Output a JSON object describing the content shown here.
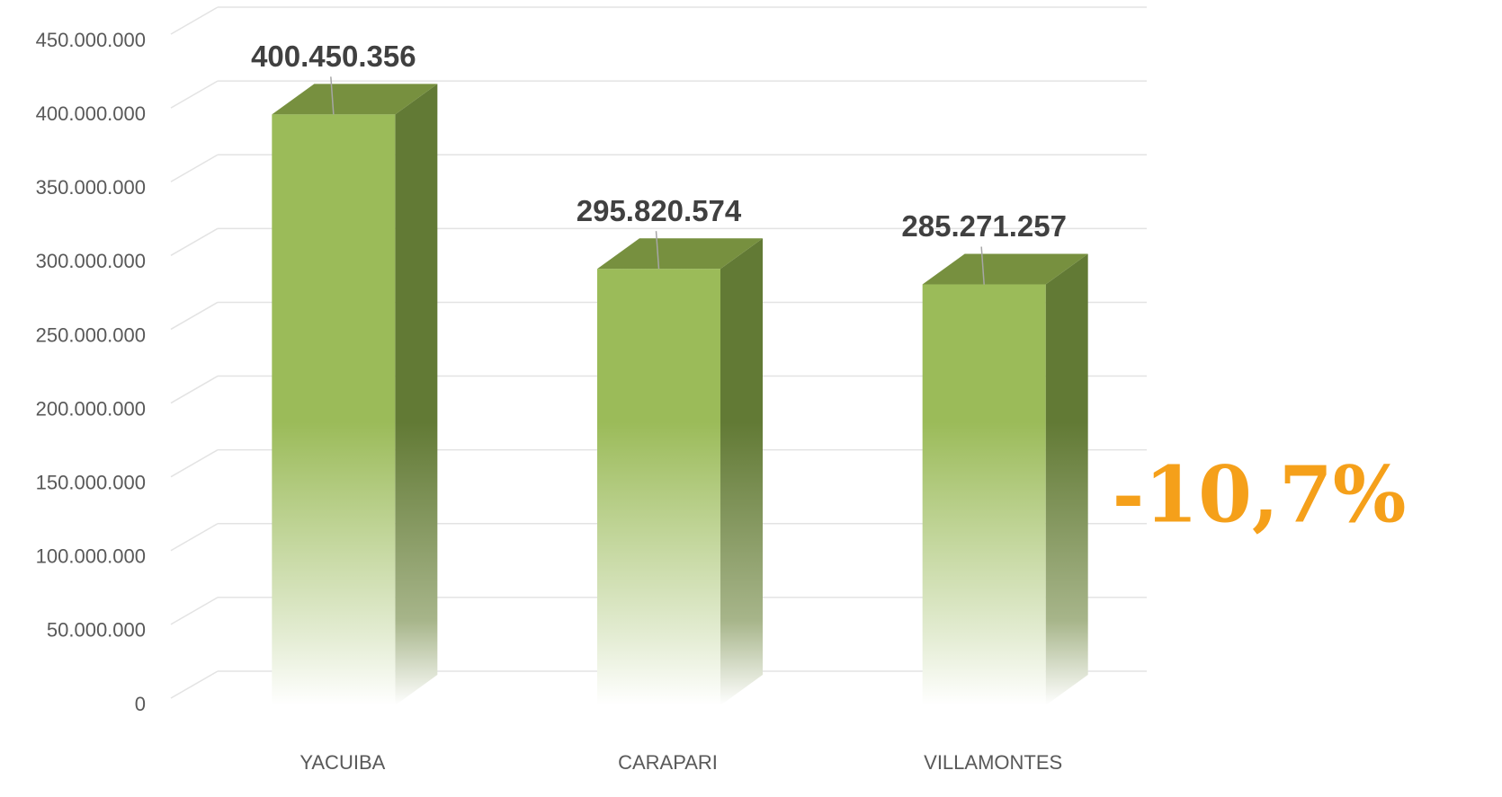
{
  "chart_data": {
    "type": "bar3d",
    "categories": [
      "YACUIBA",
      "CARAPARI",
      "VILLAMONTES"
    ],
    "values": [
      400450356,
      295820574,
      285271257
    ],
    "value_labels": [
      "400.450.356",
      "295.820.574",
      "285.271.257"
    ],
    "color": "#9bbb59",
    "ylim": [
      0,
      450000000
    ],
    "yticks": [
      0,
      {
        "value": 50000000,
        "label": "50.000.000"
      },
      {
        "value": 100000000,
        "label": "100.000.000"
      },
      {
        "value": 150000000,
        "label": "150.000.000"
      },
      {
        "value": 200000000,
        "label": "200.000.000"
      },
      {
        "value": 250000000,
        "label": "250.000.000"
      },
      {
        "value": 300000000,
        "label": "300.000.000"
      },
      {
        "value": 350000000,
        "label": "350.000.000"
      },
      {
        "value": 400000000,
        "label": "400.000.000"
      },
      {
        "value": 450000000,
        "label": "450.000.000"
      }
    ],
    "grid": true,
    "annotation": "-10,7%"
  }
}
